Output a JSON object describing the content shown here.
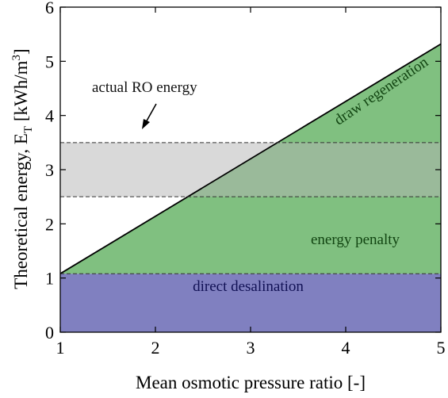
{
  "chart_data": {
    "type": "area",
    "x_range": [
      1,
      5
    ],
    "y_range": [
      0,
      6
    ],
    "xticks": [
      1,
      2,
      3,
      4,
      5
    ],
    "yticks": [
      0,
      1,
      2,
      3,
      4,
      5,
      6
    ],
    "xlabel": "Mean osmotic pressure ratio [-]",
    "ylabel_parts": {
      "a": "Theoretical energy, E",
      "sub": "T",
      "b": " [kWh/m",
      "sup": "3",
      "c": "]"
    },
    "regions": [
      {
        "name": "direct desalination",
        "y_from": 0,
        "y_to": 1.08,
        "color": "#8080c0",
        "text_color": "#111155"
      },
      {
        "name": "energy penalty",
        "y_from": 1.08,
        "line": {
          "x": [
            1,
            5
          ],
          "y": [
            1.08,
            5.32
          ]
        },
        "color": "#80c080",
        "text_color": "#114411"
      },
      {
        "name": "draw regeneration",
        "line": {
          "x": [
            1,
            5
          ],
          "y": [
            1.08,
            5.32
          ]
        },
        "text_color": "#114411"
      }
    ],
    "band": {
      "y_low": 2.5,
      "y_high": 3.5,
      "color": "#b4b4b4"
    },
    "annotations": {
      "actual_ro": "actual RO energy",
      "direct": "direct desalination",
      "penalty": "energy penalty",
      "draw": "draw regeneration"
    }
  }
}
